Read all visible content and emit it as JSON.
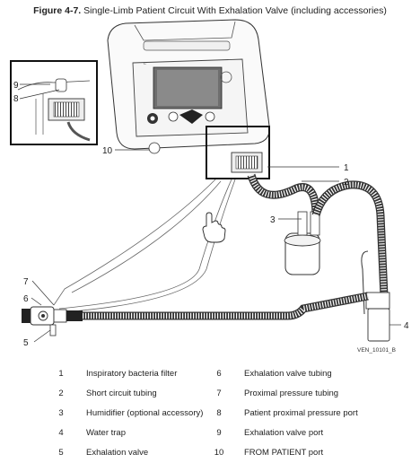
{
  "caption": {
    "figure_label": "Figure 4-7.",
    "title": "Single-Limb Patient Circuit With Exhalation Valve (including accessories)"
  },
  "figure_id": "VEN_10101_B",
  "callouts": {
    "c1": "1",
    "c2": "2",
    "c3": "3",
    "c4": "4",
    "c5": "5",
    "c6": "6",
    "c7": "7",
    "c8": "8",
    "c9": "9",
    "c10": "10"
  },
  "legend": [
    {
      "num": "1",
      "label": "Inspiratory bacteria filter"
    },
    {
      "num": "2",
      "label": "Short circuit tubing"
    },
    {
      "num": "3",
      "label": "Humidifier (optional accessory)"
    },
    {
      "num": "4",
      "label": "Water trap"
    },
    {
      "num": "5",
      "label": "Exhalation valve"
    },
    {
      "num": "6",
      "label": "Exhalation valve tubing"
    },
    {
      "num": "7",
      "label": "Proximal pressure tubing"
    },
    {
      "num": "8",
      "label": "Patient proximal pressure port"
    },
    {
      "num": "9",
      "label": "Exhalation valve port"
    },
    {
      "num": "10",
      "label": "FROM PATIENT port"
    }
  ]
}
